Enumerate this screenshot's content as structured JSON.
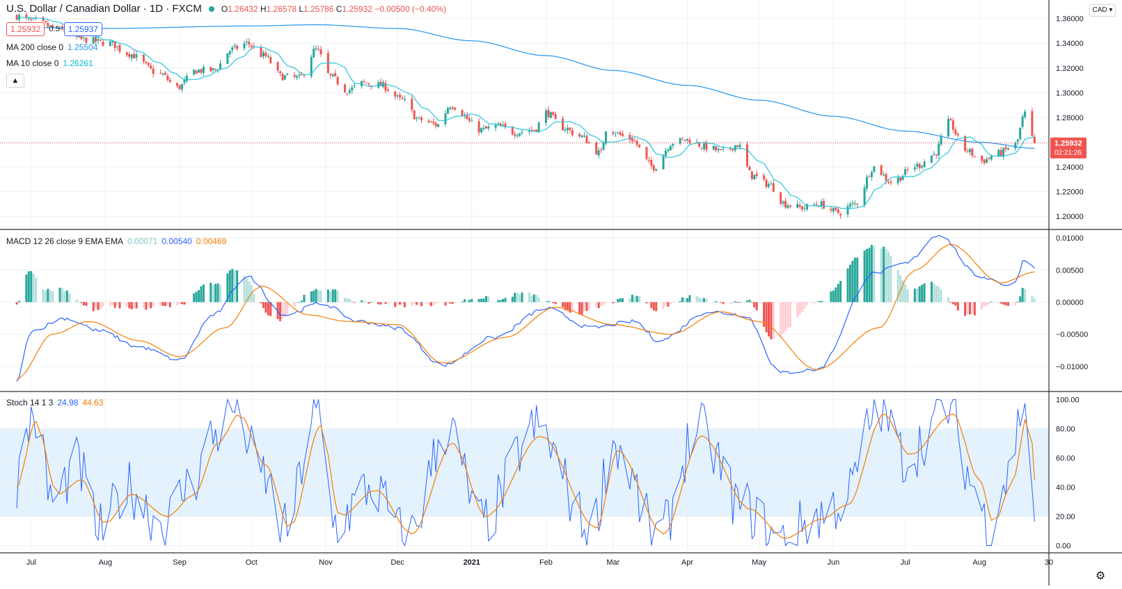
{
  "header": {
    "symbol_title": "U.S. Dollar / Canadian Dollar · 1D · FXCM",
    "ohlc": {
      "o_label": "O",
      "o": "1.26432",
      "h_label": "H",
      "h": "1.26578",
      "l_label": "L",
      "l": "1.25786",
      "c_label": "C",
      "c": "1.25932",
      "chg": "−0.00500 (−0.40%)"
    },
    "sell_price": "1.25932",
    "spread": "0.5",
    "buy_price": "1.25937",
    "currency_button": "CAD"
  },
  "legends": {
    "ma200": {
      "label": "MA 200 close 0",
      "value": "1.25504",
      "color": "#2196f3"
    },
    "ma10": {
      "label": "MA 10 close 0",
      "value": "1.26261",
      "color": "#00bcd4"
    },
    "macd": {
      "label": "MACD 12 26 close 9 EMA EMA",
      "hist": "0.00071",
      "macd": "0.00540",
      "signal": "0.00469"
    },
    "stoch": {
      "label": "Stoch 14 1 3",
      "k": "24.98",
      "d": "44.63"
    }
  },
  "last_price_label": {
    "price": "1.25932",
    "countdown": "02:21:26"
  },
  "colors": {
    "up": "#26a69a",
    "down": "#ef5350",
    "ma200": "#2196f3",
    "ma10": "#26c6da",
    "macd": "#2962ff",
    "signal": "#f57c00",
    "hist_up_strong": "#26a69a",
    "hist_up_weak": "#b2dfdb",
    "hist_down_strong": "#ef5350",
    "hist_down_weak": "#ffcdd2",
    "stoch_k": "#2962ff",
    "stoch_d": "#f57c00",
    "stoch_band": "#e3f2fd"
  },
  "chart_data": [
    {
      "type": "candlestick",
      "panel": "price",
      "title": "U.S. Dollar / Canadian Dollar · 1D · FXCM",
      "ylim": [
        1.19,
        1.375
      ],
      "y_ticks": [
        "1.36000",
        "1.34000",
        "1.32000",
        "1.30000",
        "1.28000",
        "1.26000",
        "1.24000",
        "1.22000",
        "1.20000"
      ],
      "y_tick_values": [
        1.36,
        1.34,
        1.32,
        1.3,
        1.28,
        1.26,
        1.24,
        1.22,
        1.2
      ],
      "x_ticks": [
        "Jul",
        "Aug",
        "Sep",
        "Oct",
        "Nov",
        "Dec",
        "2021",
        "Feb",
        "Mar",
        "Apr",
        "May",
        "Jun",
        "Jul",
        "Aug",
        "30"
      ],
      "close_anchors": [
        {
          "date": "2020-06-25",
          "value": 1.362
        },
        {
          "date": "2020-07-01",
          "value": 1.358
        },
        {
          "date": "2020-07-15",
          "value": 1.35
        },
        {
          "date": "2020-07-22",
          "value": 1.343
        },
        {
          "date": "2020-08-03",
          "value": 1.34
        },
        {
          "date": "2020-08-10",
          "value": 1.332
        },
        {
          "date": "2020-08-24",
          "value": 1.315
        },
        {
          "date": "2020-08-31",
          "value": 1.304
        },
        {
          "date": "2020-09-08",
          "value": 1.318
        },
        {
          "date": "2020-09-15",
          "value": 1.318
        },
        {
          "date": "2020-09-23",
          "value": 1.335
        },
        {
          "date": "2020-09-29",
          "value": 1.34
        },
        {
          "date": "2020-10-06",
          "value": 1.33
        },
        {
          "date": "2020-10-14",
          "value": 1.313
        },
        {
          "date": "2020-10-21",
          "value": 1.312
        },
        {
          "date": "2020-10-28",
          "value": 1.335
        },
        {
          "date": "2020-11-03",
          "value": 1.313
        },
        {
          "date": "2020-11-10",
          "value": 1.302
        },
        {
          "date": "2020-11-17",
          "value": 1.308
        },
        {
          "date": "2020-11-24",
          "value": 1.306
        },
        {
          "date": "2020-12-03",
          "value": 1.294
        },
        {
          "date": "2020-12-10",
          "value": 1.278
        },
        {
          "date": "2020-12-18",
          "value": 1.274
        },
        {
          "date": "2020-12-23",
          "value": 1.29
        },
        {
          "date": "2021-01-05",
          "value": 1.27
        },
        {
          "date": "2021-01-12",
          "value": 1.273
        },
        {
          "date": "2021-01-19",
          "value": 1.268
        },
        {
          "date": "2021-01-27",
          "value": 1.27
        },
        {
          "date": "2021-02-01",
          "value": 1.284
        },
        {
          "date": "2021-02-08",
          "value": 1.272
        },
        {
          "date": "2021-02-15",
          "value": 1.265
        },
        {
          "date": "2021-02-24",
          "value": 1.251
        },
        {
          "date": "2021-02-26",
          "value": 1.271
        },
        {
          "date": "2021-03-08",
          "value": 1.263
        },
        {
          "date": "2021-03-18",
          "value": 1.24
        },
        {
          "date": "2021-03-26",
          "value": 1.26
        },
        {
          "date": "2021-04-01",
          "value": 1.262
        },
        {
          "date": "2021-04-09",
          "value": 1.256
        },
        {
          "date": "2021-04-16",
          "value": 1.252
        },
        {
          "date": "2021-04-22",
          "value": 1.258
        },
        {
          "date": "2021-04-28",
          "value": 1.233
        },
        {
          "date": "2021-05-05",
          "value": 1.226
        },
        {
          "date": "2021-05-12",
          "value": 1.21
        },
        {
          "date": "2021-05-19",
          "value": 1.207
        },
        {
          "date": "2021-05-26",
          "value": 1.21
        },
        {
          "date": "2021-06-03",
          "value": 1.203
        },
        {
          "date": "2021-06-10",
          "value": 1.21
        },
        {
          "date": "2021-06-18",
          "value": 1.24
        },
        {
          "date": "2021-06-25",
          "value": 1.228
        },
        {
          "date": "2021-07-06",
          "value": 1.241
        },
        {
          "date": "2021-07-13",
          "value": 1.25
        },
        {
          "date": "2021-07-19",
          "value": 1.276
        },
        {
          "date": "2021-07-26",
          "value": 1.254
        },
        {
          "date": "2021-08-02",
          "value": 1.245
        },
        {
          "date": "2021-08-09",
          "value": 1.251
        },
        {
          "date": "2021-08-16",
          "value": 1.258
        },
        {
          "date": "2021-08-20",
          "value": 1.283
        },
        {
          "date": "2021-08-24",
          "value": 1.259
        }
      ],
      "ma200_anchors": [
        {
          "date": "2020-06-25",
          "value": 1.353
        },
        {
          "date": "2020-08-01",
          "value": 1.352
        },
        {
          "date": "2020-10-01",
          "value": 1.354
        },
        {
          "date": "2020-10-28",
          "value": 1.355
        },
        {
          "date": "2020-12-01",
          "value": 1.352
        },
        {
          "date": "2021-01-01",
          "value": 1.342
        },
        {
          "date": "2021-02-01",
          "value": 1.33
        },
        {
          "date": "2021-03-01",
          "value": 1.318
        },
        {
          "date": "2021-04-01",
          "value": 1.306
        },
        {
          "date": "2021-05-01",
          "value": 1.294
        },
        {
          "date": "2021-06-01",
          "value": 1.281
        },
        {
          "date": "2021-07-01",
          "value": 1.269
        },
        {
          "date": "2021-08-01",
          "value": 1.26
        },
        {
          "date": "2021-08-24",
          "value": 1.255
        }
      ]
    },
    {
      "type": "macd",
      "panel": "macd",
      "title": "MACD 12 26 close 9 EMA EMA",
      "ylim": [
        -0.0138,
        0.0112
      ],
      "y_ticks": [
        "0.01000",
        "0.00500",
        "0.00000",
        "−0.00500",
        "−0.01000"
      ],
      "y_tick_values": [
        0.01,
        0.005,
        0,
        -0.005,
        -0.01
      ],
      "macd_anchors": [
        {
          "date": "2020-06-25",
          "value": -0.0125
        },
        {
          "date": "2020-07-01",
          "value": -0.0045
        },
        {
          "date": "2020-07-15",
          "value": -0.0025
        },
        {
          "date": "2020-07-30",
          "value": -0.0045
        },
        {
          "date": "2020-08-15",
          "value": -0.007
        },
        {
          "date": "2020-09-01",
          "value": -0.009
        },
        {
          "date": "2020-09-15",
          "value": -0.002
        },
        {
          "date": "2020-09-29",
          "value": 0.004
        },
        {
          "date": "2020-10-15",
          "value": -0.002
        },
        {
          "date": "2020-10-30",
          "value": -0.0002
        },
        {
          "date": "2020-11-15",
          "value": -0.003
        },
        {
          "date": "2020-12-01",
          "value": -0.004
        },
        {
          "date": "2020-12-20",
          "value": -0.0098
        },
        {
          "date": "2021-01-10",
          "value": -0.0055
        },
        {
          "date": "2021-02-01",
          "value": -0.001
        },
        {
          "date": "2021-02-20",
          "value": -0.004
        },
        {
          "date": "2021-03-10",
          "value": -0.003
        },
        {
          "date": "2021-03-20",
          "value": -0.006
        },
        {
          "date": "2021-04-10",
          "value": -0.0015
        },
        {
          "date": "2021-04-25",
          "value": -0.002
        },
        {
          "date": "2021-05-10",
          "value": -0.011
        },
        {
          "date": "2021-05-25",
          "value": -0.0105
        },
        {
          "date": "2021-06-18",
          "value": 0.0045
        },
        {
          "date": "2021-07-01",
          "value": 0.006
        },
        {
          "date": "2021-07-15",
          "value": 0.0105
        },
        {
          "date": "2021-08-01",
          "value": 0.004
        },
        {
          "date": "2021-08-15",
          "value": 0.0025
        },
        {
          "date": "2021-08-20",
          "value": 0.0067
        },
        {
          "date": "2021-08-24",
          "value": 0.0054
        }
      ],
      "signal_anchors": [
        {
          "date": "2020-06-25",
          "value": -0.012
        },
        {
          "date": "2020-07-10",
          "value": -0.005
        },
        {
          "date": "2020-07-25",
          "value": -0.003
        },
        {
          "date": "2020-08-15",
          "value": -0.006
        },
        {
          "date": "2020-09-01",
          "value": -0.0085
        },
        {
          "date": "2020-09-20",
          "value": -0.004
        },
        {
          "date": "2020-10-05",
          "value": 0.0025
        },
        {
          "date": "2020-10-25",
          "value": -0.002
        },
        {
          "date": "2020-11-10",
          "value": -0.003
        },
        {
          "date": "2020-12-01",
          "value": -0.0035
        },
        {
          "date": "2020-12-20",
          "value": -0.0095
        },
        {
          "date": "2021-01-15",
          "value": -0.0055
        },
        {
          "date": "2021-02-05",
          "value": -0.0008
        },
        {
          "date": "2021-03-01",
          "value": -0.0035
        },
        {
          "date": "2021-03-25",
          "value": -0.005
        },
        {
          "date": "2021-04-15",
          "value": -0.0015
        },
        {
          "date": "2021-05-01",
          "value": -0.003
        },
        {
          "date": "2021-05-25",
          "value": -0.0105
        },
        {
          "date": "2021-06-20",
          "value": -0.004
        },
        {
          "date": "2021-07-05",
          "value": 0.005
        },
        {
          "date": "2021-07-20",
          "value": 0.009
        },
        {
          "date": "2021-08-10",
          "value": 0.003
        },
        {
          "date": "2021-08-24",
          "value": 0.0047
        }
      ]
    },
    {
      "type": "stochastic",
      "panel": "stoch",
      "title": "Stoch 14 1 3",
      "ylim": [
        -5,
        105
      ],
      "y_ticks": [
        "100.00",
        "80.00",
        "60.00",
        "40.00",
        "20.00",
        "0.00"
      ],
      "y_tick_values": [
        100,
        80,
        60,
        40,
        20,
        0
      ],
      "band": [
        20,
        80
      ],
      "k_anchors": [
        {
          "date": "2020-06-25",
          "value": 45
        },
        {
          "date": "2020-07-02",
          "value": 90
        },
        {
          "date": "2020-07-10",
          "value": 30
        },
        {
          "date": "2020-07-20",
          "value": 55
        },
        {
          "date": "2020-07-30",
          "value": 10
        },
        {
          "date": "2020-08-10",
          "value": 40
        },
        {
          "date": "2020-08-25",
          "value": 15
        },
        {
          "date": "2020-09-05",
          "value": 40
        },
        {
          "date": "2020-09-15",
          "value": 75
        },
        {
          "date": "2020-09-24",
          "value": 95
        },
        {
          "date": "2020-10-05",
          "value": 50
        },
        {
          "date": "2020-10-15",
          "value": 10
        },
        {
          "date": "2020-10-28",
          "value": 90
        },
        {
          "date": "2020-11-05",
          "value": 15
        },
        {
          "date": "2020-11-20",
          "value": 40
        },
        {
          "date": "2020-12-05",
          "value": 5
        },
        {
          "date": "2020-12-22",
          "value": 80
        },
        {
          "date": "2021-01-05",
          "value": 15
        },
        {
          "date": "2021-01-28",
          "value": 80
        },
        {
          "date": "2021-02-20",
          "value": 10
        },
        {
          "date": "2021-03-01",
          "value": 70
        },
        {
          "date": "2021-03-20",
          "value": 5
        },
        {
          "date": "2021-04-05",
          "value": 80
        },
        {
          "date": "2021-04-25",
          "value": 25
        },
        {
          "date": "2021-05-10",
          "value": 3
        },
        {
          "date": "2021-05-25",
          "value": 20
        },
        {
          "date": "2021-06-05",
          "value": 30
        },
        {
          "date": "2021-06-20",
          "value": 95
        },
        {
          "date": "2021-07-01",
          "value": 60
        },
        {
          "date": "2021-07-19",
          "value": 95
        },
        {
          "date": "2021-07-30",
          "value": 40
        },
        {
          "date": "2021-08-05",
          "value": 10
        },
        {
          "date": "2021-08-12",
          "value": 45
        },
        {
          "date": "2021-08-20",
          "value": 99
        },
        {
          "date": "2021-08-24",
          "value": 25
        }
      ],
      "d_anchors": [
        {
          "date": "2020-06-25",
          "value": 40
        },
        {
          "date": "2020-07-03",
          "value": 85
        },
        {
          "date": "2020-07-12",
          "value": 35
        },
        {
          "date": "2020-07-22",
          "value": 45
        },
        {
          "date": "2020-08-01",
          "value": 15
        },
        {
          "date": "2020-08-12",
          "value": 35
        },
        {
          "date": "2020-08-27",
          "value": 20
        },
        {
          "date": "2020-09-07",
          "value": 35
        },
        {
          "date": "2020-09-17",
          "value": 70
        },
        {
          "date": "2020-09-26",
          "value": 90
        },
        {
          "date": "2020-10-07",
          "value": 55
        },
        {
          "date": "2020-10-17",
          "value": 12
        },
        {
          "date": "2020-10-30",
          "value": 82
        },
        {
          "date": "2020-11-07",
          "value": 20
        },
        {
          "date": "2020-11-22",
          "value": 38
        },
        {
          "date": "2020-12-07",
          "value": 8
        },
        {
          "date": "2020-12-24",
          "value": 70
        },
        {
          "date": "2021-01-07",
          "value": 20
        },
        {
          "date": "2021-01-30",
          "value": 75
        },
        {
          "date": "2021-02-22",
          "value": 12
        },
        {
          "date": "2021-03-03",
          "value": 65
        },
        {
          "date": "2021-03-22",
          "value": 8
        },
        {
          "date": "2021-04-07",
          "value": 75
        },
        {
          "date": "2021-04-27",
          "value": 25
        },
        {
          "date": "2021-05-12",
          "value": 5
        },
        {
          "date": "2021-05-27",
          "value": 18
        },
        {
          "date": "2021-06-07",
          "value": 28
        },
        {
          "date": "2021-06-22",
          "value": 90
        },
        {
          "date": "2021-07-03",
          "value": 62
        },
        {
          "date": "2021-07-21",
          "value": 90
        },
        {
          "date": "2021-08-01",
          "value": 45
        },
        {
          "date": "2021-08-07",
          "value": 15
        },
        {
          "date": "2021-08-14",
          "value": 40
        },
        {
          "date": "2021-08-22",
          "value": 95
        },
        {
          "date": "2021-08-24",
          "value": 45
        }
      ]
    }
  ]
}
